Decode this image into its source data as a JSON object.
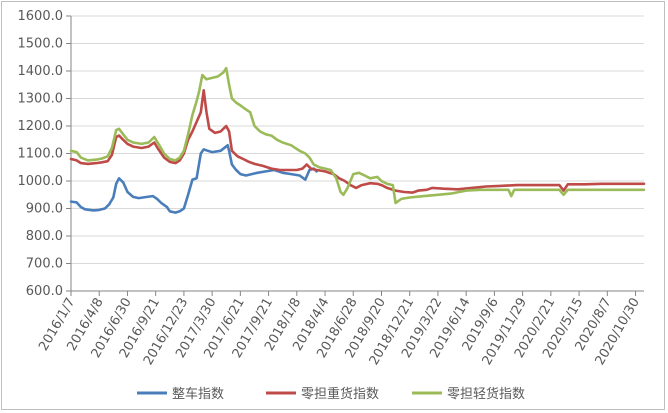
{
  "chart_data": {
    "type": "line",
    "title": "",
    "xlabel": "",
    "ylabel": "",
    "ylim": [
      600,
      1600
    ],
    "y_ticks": [
      "600.0",
      "700.0",
      "800.0",
      "900.0",
      "1000.0",
      "1100.0",
      "1200.0",
      "1300.0",
      "1400.0",
      "1500.0",
      "1600.0"
    ],
    "x_tick_labels": [
      "2016/1/7",
      "2016/4/8",
      "2016/6/30",
      "2016/9/21",
      "2016/12/23",
      "2017/3/30",
      "2017/6/21",
      "2017/9/21",
      "2018/1/8",
      "2018/4/4",
      "2018/6/28",
      "2018/9/20",
      "2018/12/21",
      "2019/3/22",
      "2019/6/14",
      "2019/9/6",
      "2019/11/29",
      "2020/2/21",
      "2020/5/15",
      "2020/8/7",
      "2020/10/30"
    ],
    "x_range": [
      0,
      20.3
    ],
    "grid": {
      "horizontal": true,
      "vertical": false
    },
    "legend_position": "bottom",
    "series": [
      {
        "name": "整车指数",
        "color": "#4A7EBB",
        "points": [
          [
            0.0,
            925
          ],
          [
            0.2,
            922
          ],
          [
            0.35,
            905
          ],
          [
            0.5,
            897
          ],
          [
            0.8,
            893
          ],
          [
            1.0,
            895
          ],
          [
            1.2,
            900
          ],
          [
            1.35,
            915
          ],
          [
            1.5,
            940
          ],
          [
            1.6,
            990
          ],
          [
            1.7,
            1010
          ],
          [
            1.85,
            995
          ],
          [
            2.0,
            960
          ],
          [
            2.2,
            942
          ],
          [
            2.4,
            938
          ],
          [
            2.7,
            942
          ],
          [
            2.9,
            945
          ],
          [
            3.05,
            935
          ],
          [
            3.2,
            920
          ],
          [
            3.4,
            905
          ],
          [
            3.5,
            890
          ],
          [
            3.7,
            885
          ],
          [
            3.85,
            890
          ],
          [
            4.0,
            900
          ],
          [
            4.15,
            950
          ],
          [
            4.3,
            1005
          ],
          [
            4.45,
            1010
          ],
          [
            4.6,
            1100
          ],
          [
            4.7,
            1115
          ],
          [
            4.85,
            1110
          ],
          [
            5.0,
            1105
          ],
          [
            5.3,
            1110
          ],
          [
            5.55,
            1130
          ],
          [
            5.6,
            1110
          ],
          [
            5.7,
            1060
          ],
          [
            5.85,
            1040
          ],
          [
            6.0,
            1025
          ],
          [
            6.2,
            1020
          ],
          [
            6.4,
            1025
          ],
          [
            6.6,
            1030
          ],
          [
            6.9,
            1035
          ],
          [
            7.2,
            1040
          ],
          [
            7.5,
            1030
          ],
          [
            7.8,
            1025
          ],
          [
            8.1,
            1020
          ],
          [
            8.3,
            1005
          ],
          [
            8.45,
            1040
          ],
          [
            8.6,
            1045
          ],
          [
            8.7,
            1035
          ]
        ]
      },
      {
        "name": "零担重货指数",
        "color": "#BE4B48",
        "points": [
          [
            0.0,
            1080
          ],
          [
            0.2,
            1075
          ],
          [
            0.35,
            1065
          ],
          [
            0.6,
            1062
          ],
          [
            0.9,
            1065
          ],
          [
            1.1,
            1068
          ],
          [
            1.3,
            1072
          ],
          [
            1.45,
            1095
          ],
          [
            1.6,
            1160
          ],
          [
            1.7,
            1165
          ],
          [
            1.85,
            1150
          ],
          [
            2.0,
            1135
          ],
          [
            2.2,
            1125
          ],
          [
            2.5,
            1120
          ],
          [
            2.75,
            1125
          ],
          [
            2.95,
            1140
          ],
          [
            3.1,
            1115
          ],
          [
            3.3,
            1085
          ],
          [
            3.5,
            1070
          ],
          [
            3.7,
            1065
          ],
          [
            3.85,
            1075
          ],
          [
            4.0,
            1100
          ],
          [
            4.15,
            1150
          ],
          [
            4.3,
            1180
          ],
          [
            4.45,
            1215
          ],
          [
            4.6,
            1250
          ],
          [
            4.7,
            1330
          ],
          [
            4.8,
            1250
          ],
          [
            4.9,
            1190
          ],
          [
            5.1,
            1175
          ],
          [
            5.3,
            1180
          ],
          [
            5.5,
            1200
          ],
          [
            5.6,
            1180
          ],
          [
            5.7,
            1110
          ],
          [
            5.9,
            1090
          ],
          [
            6.1,
            1080
          ],
          [
            6.3,
            1070
          ],
          [
            6.5,
            1062
          ],
          [
            6.8,
            1055
          ],
          [
            7.1,
            1045
          ],
          [
            7.4,
            1040
          ],
          [
            7.7,
            1040
          ],
          [
            8.0,
            1040
          ],
          [
            8.2,
            1045
          ],
          [
            8.35,
            1060
          ],
          [
            8.5,
            1045
          ],
          [
            8.7,
            1040
          ],
          [
            9.0,
            1035
          ],
          [
            9.3,
            1025
          ],
          [
            9.5,
            1010
          ],
          [
            9.7,
            1000
          ],
          [
            9.9,
            985
          ],
          [
            10.1,
            975
          ],
          [
            10.3,
            985
          ],
          [
            10.6,
            992
          ],
          [
            10.85,
            990
          ],
          [
            11.0,
            985
          ],
          [
            11.2,
            975
          ],
          [
            11.5,
            965
          ],
          [
            11.8,
            960
          ],
          [
            12.1,
            958
          ],
          [
            12.3,
            965
          ],
          [
            12.6,
            968
          ],
          [
            12.8,
            975
          ],
          [
            13.2,
            972
          ],
          [
            13.7,
            970
          ],
          [
            14.2,
            975
          ],
          [
            14.7,
            980
          ],
          [
            15.2,
            982
          ],
          [
            15.8,
            985
          ],
          [
            16.4,
            985
          ],
          [
            16.9,
            985
          ],
          [
            17.3,
            985
          ],
          [
            17.45,
            965
          ],
          [
            17.6,
            988
          ],
          [
            18.2,
            988
          ],
          [
            18.8,
            990
          ],
          [
            19.4,
            990
          ],
          [
            20.0,
            990
          ],
          [
            20.3,
            990
          ]
        ]
      },
      {
        "name": "零担轻货指数",
        "color": "#9BBB59",
        "points": [
          [
            0.0,
            1110
          ],
          [
            0.2,
            1105
          ],
          [
            0.35,
            1085
          ],
          [
            0.6,
            1075
          ],
          [
            0.9,
            1078
          ],
          [
            1.1,
            1082
          ],
          [
            1.3,
            1090
          ],
          [
            1.45,
            1120
          ],
          [
            1.6,
            1185
          ],
          [
            1.7,
            1190
          ],
          [
            1.85,
            1170
          ],
          [
            2.0,
            1150
          ],
          [
            2.2,
            1140
          ],
          [
            2.5,
            1135
          ],
          [
            2.75,
            1140
          ],
          [
            2.95,
            1160
          ],
          [
            3.1,
            1135
          ],
          [
            3.3,
            1100
          ],
          [
            3.5,
            1080
          ],
          [
            3.7,
            1075
          ],
          [
            3.85,
            1085
          ],
          [
            4.0,
            1110
          ],
          [
            4.15,
            1170
          ],
          [
            4.3,
            1240
          ],
          [
            4.45,
            1290
          ],
          [
            4.55,
            1330
          ],
          [
            4.65,
            1385
          ],
          [
            4.8,
            1370
          ],
          [
            5.0,
            1375
          ],
          [
            5.2,
            1380
          ],
          [
            5.4,
            1395
          ],
          [
            5.5,
            1410
          ],
          [
            5.6,
            1350
          ],
          [
            5.7,
            1300
          ],
          [
            5.85,
            1285
          ],
          [
            6.0,
            1275
          ],
          [
            6.2,
            1260
          ],
          [
            6.35,
            1250
          ],
          [
            6.5,
            1200
          ],
          [
            6.7,
            1180
          ],
          [
            6.9,
            1170
          ],
          [
            7.1,
            1165
          ],
          [
            7.3,
            1150
          ],
          [
            7.5,
            1140
          ],
          [
            7.8,
            1130
          ],
          [
            8.1,
            1110
          ],
          [
            8.3,
            1100
          ],
          [
            8.45,
            1085
          ],
          [
            8.6,
            1060
          ],
          [
            8.8,
            1050
          ],
          [
            9.0,
            1045
          ],
          [
            9.2,
            1040
          ],
          [
            9.4,
            1010
          ],
          [
            9.55,
            960
          ],
          [
            9.65,
            950
          ],
          [
            9.8,
            975
          ],
          [
            10.0,
            1025
          ],
          [
            10.2,
            1030
          ],
          [
            10.4,
            1020
          ],
          [
            10.6,
            1010
          ],
          [
            10.85,
            1015
          ],
          [
            11.0,
            1000
          ],
          [
            11.2,
            990
          ],
          [
            11.4,
            985
          ],
          [
            11.5,
            920
          ],
          [
            11.7,
            935
          ],
          [
            12.0,
            940
          ],
          [
            12.5,
            945
          ],
          [
            13.0,
            950
          ],
          [
            13.5,
            955
          ],
          [
            14.0,
            965
          ],
          [
            14.5,
            968
          ],
          [
            15.0,
            968
          ],
          [
            15.5,
            968
          ],
          [
            15.6,
            945
          ],
          [
            15.7,
            968
          ],
          [
            16.3,
            968
          ],
          [
            17.0,
            968
          ],
          [
            17.3,
            968
          ],
          [
            17.45,
            950
          ],
          [
            17.6,
            968
          ],
          [
            18.2,
            968
          ],
          [
            18.8,
            968
          ],
          [
            19.4,
            968
          ],
          [
            20.0,
            968
          ],
          [
            20.3,
            968
          ]
        ]
      }
    ]
  }
}
